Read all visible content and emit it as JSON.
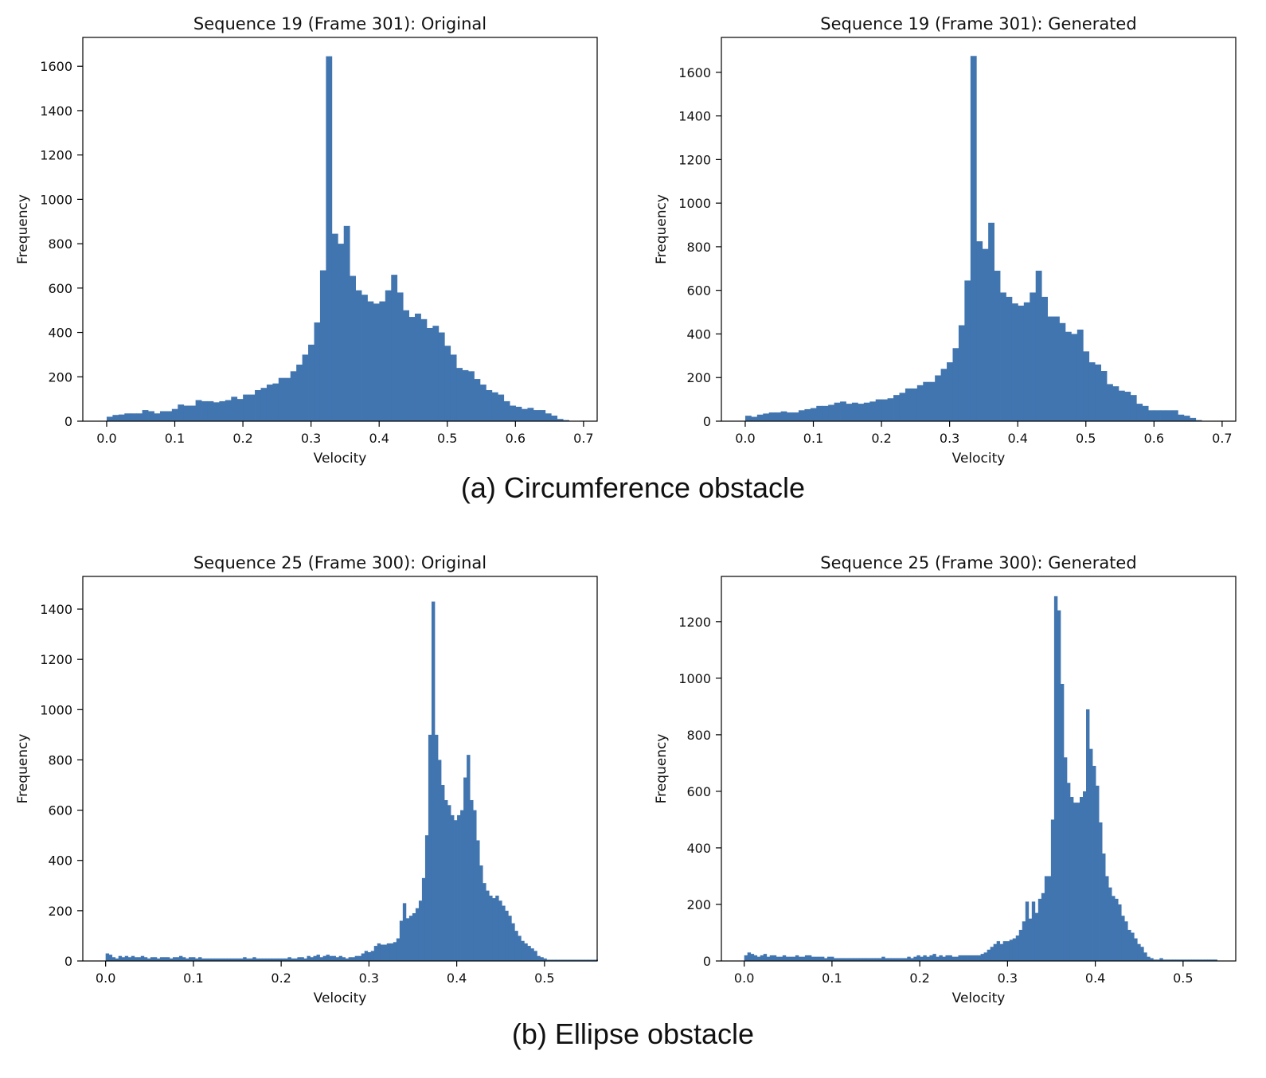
{
  "figure": {
    "caption_a": "(a) Circumference obstacle",
    "caption_b": "(b) Ellipse obstacle",
    "bar_color": "#4175b0"
  },
  "chart_data": [
    {
      "type": "bar",
      "title": "Sequence 19 (Frame 301): Original",
      "xlabel": "Velocity",
      "ylabel": "Frequency",
      "xlim": [
        -0.035,
        0.72
      ],
      "ylim": [
        0,
        1730
      ],
      "xticks": [
        0.0,
        0.1,
        0.2,
        0.3,
        0.4,
        0.5,
        0.6,
        0.7
      ],
      "yticks": [
        0,
        200,
        400,
        600,
        800,
        1000,
        1200,
        1400,
        1600
      ],
      "bin_start": 0.0,
      "bin_width": 0.0087,
      "values": [
        20,
        28,
        30,
        35,
        35,
        35,
        50,
        45,
        35,
        45,
        45,
        55,
        75,
        70,
        70,
        95,
        90,
        90,
        85,
        90,
        95,
        110,
        100,
        120,
        120,
        140,
        150,
        165,
        170,
        195,
        195,
        225,
        255,
        300,
        345,
        445,
        680,
        1645,
        845,
        800,
        880,
        655,
        590,
        570,
        540,
        530,
        540,
        590,
        660,
        580,
        500,
        470,
        485,
        460,
        420,
        430,
        400,
        340,
        300,
        240,
        230,
        225,
        190,
        165,
        140,
        130,
        120,
        90,
        70,
        65,
        55,
        60,
        50,
        50,
        35,
        25,
        10,
        5
      ]
    },
    {
      "type": "bar",
      "title": "Sequence 19 (Frame 301): Generated",
      "xlabel": "Velocity",
      "ylabel": "Frequency",
      "xlim": [
        -0.035,
        0.72
      ],
      "ylim": [
        0,
        1760
      ],
      "xticks": [
        0.0,
        0.1,
        0.2,
        0.3,
        0.4,
        0.5,
        0.6,
        0.7
      ],
      "yticks": [
        0,
        200,
        400,
        600,
        800,
        1000,
        1200,
        1400,
        1600
      ],
      "bin_start": 0.0,
      "bin_width": 0.0087,
      "values": [
        25,
        20,
        30,
        35,
        40,
        40,
        45,
        40,
        40,
        50,
        55,
        60,
        70,
        70,
        75,
        85,
        90,
        80,
        85,
        80,
        85,
        90,
        100,
        100,
        105,
        120,
        130,
        150,
        150,
        165,
        180,
        180,
        210,
        240,
        270,
        335,
        440,
        645,
        1675,
        825,
        790,
        910,
        690,
        590,
        570,
        540,
        530,
        545,
        590,
        690,
        570,
        480,
        480,
        450,
        410,
        400,
        420,
        320,
        270,
        260,
        230,
        170,
        160,
        140,
        135,
        120,
        80,
        70,
        50,
        50,
        50,
        50,
        50,
        30,
        25,
        15,
        5
      ]
    },
    {
      "type": "bar",
      "title": "Sequence 25 (Frame 300): Original",
      "xlabel": "Velocity",
      "ylabel": "Frequency",
      "xlim": [
        -0.026,
        0.56
      ],
      "ylim": [
        0,
        1530
      ],
      "xticks": [
        0.0,
        0.1,
        0.2,
        0.3,
        0.4,
        0.5
      ],
      "yticks": [
        0,
        200,
        400,
        600,
        800,
        1000,
        1200,
        1400
      ],
      "bin_start": 0.0,
      "bin_width": 0.00364,
      "values": [
        30,
        25,
        15,
        10,
        20,
        15,
        20,
        15,
        20,
        15,
        15,
        20,
        15,
        10,
        15,
        15,
        10,
        15,
        15,
        15,
        10,
        15,
        15,
        20,
        15,
        10,
        15,
        15,
        10,
        15,
        10,
        10,
        10,
        10,
        10,
        10,
        10,
        10,
        10,
        10,
        10,
        10,
        10,
        15,
        10,
        10,
        15,
        10,
        10,
        10,
        10,
        10,
        10,
        10,
        10,
        10,
        10,
        15,
        10,
        10,
        15,
        15,
        10,
        20,
        15,
        20,
        25,
        15,
        20,
        25,
        20,
        20,
        15,
        20,
        15,
        10,
        15,
        15,
        20,
        20,
        30,
        40,
        35,
        40,
        60,
        70,
        65,
        65,
        70,
        70,
        75,
        90,
        160,
        230,
        170,
        180,
        190,
        210,
        240,
        330,
        500,
        900,
        1430,
        900,
        800,
        700,
        640,
        620,
        580,
        560,
        580,
        600,
        730,
        820,
        640,
        600,
        480,
        380,
        310,
        280,
        260,
        250,
        260,
        240,
        220,
        200,
        180,
        150,
        120,
        100,
        80,
        70,
        60,
        50,
        40,
        20,
        15,
        10,
        5,
        5,
        5,
        5,
        5,
        5,
        5,
        5,
        5,
        5,
        5,
        5,
        5,
        5,
        5,
        5
      ]
    },
    {
      "type": "bar",
      "title": "Sequence 25 (Frame 300): Generated",
      "xlabel": "Velocity",
      "ylabel": "Frequency",
      "xlim": [
        -0.026,
        0.56
      ],
      "ylim": [
        0,
        1360
      ],
      "xticks": [
        0.0,
        0.1,
        0.2,
        0.3,
        0.4,
        0.5
      ],
      "yticks": [
        0,
        200,
        400,
        600,
        800,
        1000,
        1200
      ],
      "bin_start": 0.0,
      "bin_width": 0.00364,
      "values": [
        20,
        30,
        25,
        20,
        15,
        20,
        25,
        15,
        20,
        20,
        15,
        15,
        20,
        15,
        15,
        15,
        20,
        15,
        15,
        20,
        20,
        15,
        15,
        15,
        15,
        10,
        15,
        15,
        10,
        10,
        10,
        10,
        10,
        10,
        10,
        10,
        10,
        10,
        10,
        10,
        10,
        10,
        10,
        15,
        10,
        10,
        10,
        10,
        10,
        10,
        10,
        15,
        10,
        15,
        20,
        15,
        20,
        15,
        20,
        25,
        15,
        20,
        15,
        20,
        20,
        15,
        15,
        20,
        20,
        20,
        20,
        20,
        20,
        20,
        25,
        30,
        40,
        50,
        60,
        70,
        60,
        70,
        70,
        75,
        80,
        90,
        110,
        140,
        210,
        150,
        210,
        170,
        220,
        240,
        300,
        300,
        500,
        1290,
        1240,
        980,
        720,
        630,
        580,
        560,
        560,
        580,
        600,
        890,
        750,
        690,
        620,
        490,
        380,
        300,
        260,
        230,
        220,
        200,
        160,
        140,
        110,
        100,
        80,
        60,
        50,
        30,
        15,
        10,
        5,
        5,
        10,
        5,
        5,
        5,
        5,
        5,
        5,
        5,
        5,
        5,
        5,
        5,
        5,
        5,
        5,
        5,
        5,
        5
      ]
    }
  ]
}
